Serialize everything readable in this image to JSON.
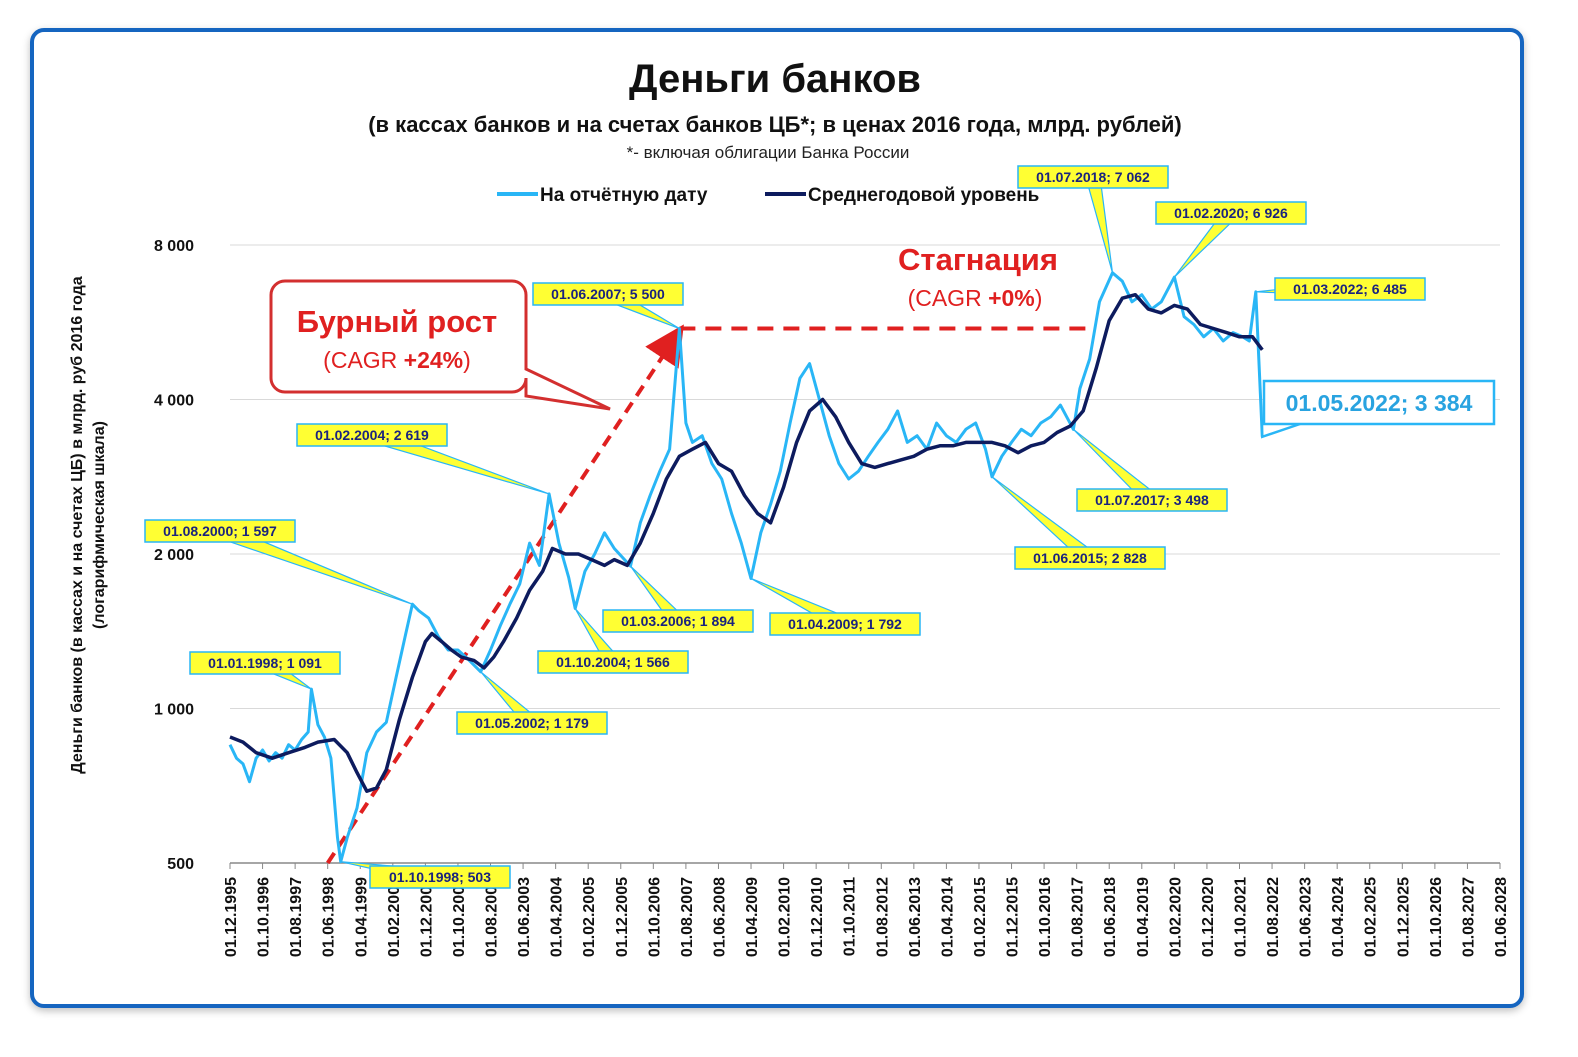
{
  "chart_data": {
    "type": "line",
    "title": "Деньги банков",
    "subtitle": "(в кассах банков и на счетах банков ЦБ*; в ценах 2016 года, млрд. рублей)",
    "footnote": "*- включая облигации Банка России",
    "ylabel_line1": "Деньги банков (в кассах и на счетах ЦБ) в млрд. руб 2016 года",
    "ylabel_line2": "(логарифмическая шкала)",
    "yscale": "log",
    "ylim": [
      500,
      8000
    ],
    "yticks": [
      {
        "value": 500,
        "label": "500"
      },
      {
        "value": 1000,
        "label": "1 000"
      },
      {
        "value": 2000,
        "label": "2 000"
      },
      {
        "value": 4000,
        "label": "4 000"
      },
      {
        "value": 8000,
        "label": "8 000"
      }
    ],
    "xlim": [
      "1995-12",
      "2028-06"
    ],
    "xticks": [
      "01.12.1995",
      "01.10.1996",
      "01.08.1997",
      "01.06.1998",
      "01.04.1999",
      "01.02.2000",
      "01.12.2000",
      "01.10.2001",
      "01.08.2002",
      "01.06.2003",
      "01.04.2004",
      "01.02.2005",
      "01.12.2005",
      "01.10.2006",
      "01.08.2007",
      "01.06.2008",
      "01.04.2009",
      "01.02.2010",
      "01.12.2010",
      "01.10.2011",
      "01.08.2012",
      "01.06.2013",
      "01.04.2014",
      "01.02.2015",
      "01.12.2015",
      "01.10.2016",
      "01.08.2017",
      "01.06.2018",
      "01.04.2019",
      "01.02.2020",
      "01.12.2020",
      "01.10.2021",
      "01.08.2022",
      "01.06.2023",
      "01.04.2024",
      "01.02.2025",
      "01.12.2025",
      "01.10.2026",
      "01.08.2027",
      "01.06.2028"
    ],
    "grid": true,
    "legend_position": "top-center",
    "series": [
      {
        "name": "На отчётную дату",
        "color": "#29b6f6",
        "points": [
          [
            "1995-12",
            850
          ],
          [
            "1996-02",
            800
          ],
          [
            "1996-04",
            780
          ],
          [
            "1996-06",
            720
          ],
          [
            "1996-08",
            800
          ],
          [
            "1996-10",
            830
          ],
          [
            "1996-12",
            790
          ],
          [
            "1997-02",
            820
          ],
          [
            "1997-04",
            800
          ],
          [
            "1997-06",
            850
          ],
          [
            "1997-08",
            830
          ],
          [
            "1997-10",
            870
          ],
          [
            "1997-12",
            900
          ],
          [
            "1998-01",
            1091
          ],
          [
            "1998-03",
            930
          ],
          [
            "1998-05",
            880
          ],
          [
            "1998-07",
            800
          ],
          [
            "1998-09",
            560
          ],
          [
            "1998-10",
            503
          ],
          [
            "1998-12",
            560
          ],
          [
            "1999-03",
            640
          ],
          [
            "1999-06",
            820
          ],
          [
            "1999-09",
            900
          ],
          [
            "1999-12",
            940
          ],
          [
            "2000-03",
            1150
          ],
          [
            "2000-06",
            1400
          ],
          [
            "2000-08",
            1597
          ],
          [
            "2000-10",
            1550
          ],
          [
            "2001-01",
            1500
          ],
          [
            "2001-04",
            1380
          ],
          [
            "2001-07",
            1300
          ],
          [
            "2001-10",
            1300
          ],
          [
            "2002-01",
            1250
          ],
          [
            "2002-05",
            1179
          ],
          [
            "2002-08",
            1300
          ],
          [
            "2002-11",
            1450
          ],
          [
            "2003-02",
            1600
          ],
          [
            "2003-05",
            1750
          ],
          [
            "2003-08",
            2100
          ],
          [
            "2003-11",
            1900
          ],
          [
            "2004-02",
            2619
          ],
          [
            "2004-05",
            2100
          ],
          [
            "2004-08",
            1800
          ],
          [
            "2004-10",
            1566
          ],
          [
            "2005-01",
            1850
          ],
          [
            "2005-04",
            2000
          ],
          [
            "2005-07",
            2200
          ],
          [
            "2005-10",
            2050
          ],
          [
            "2006-03",
            1894
          ],
          [
            "2006-06",
            2300
          ],
          [
            "2006-09",
            2600
          ],
          [
            "2006-12",
            2900
          ],
          [
            "2007-03",
            3200
          ],
          [
            "2007-06",
            5500
          ],
          [
            "2007-08",
            3600
          ],
          [
            "2007-10",
            3300
          ],
          [
            "2008-01",
            3400
          ],
          [
            "2008-04",
            3000
          ],
          [
            "2008-07",
            2800
          ],
          [
            "2008-10",
            2400
          ],
          [
            "2009-01",
            2100
          ],
          [
            "2009-04",
            1792
          ],
          [
            "2009-07",
            2200
          ],
          [
            "2009-10",
            2500
          ],
          [
            "2010-01",
            2900
          ],
          [
            "2010-04",
            3600
          ],
          [
            "2010-07",
            4400
          ],
          [
            "2010-10",
            4700
          ],
          [
            "2011-01",
            4000
          ],
          [
            "2011-04",
            3400
          ],
          [
            "2011-07",
            3000
          ],
          [
            "2011-10",
            2800
          ],
          [
            "2012-01",
            2900
          ],
          [
            "2012-04",
            3100
          ],
          [
            "2012-07",
            3300
          ],
          [
            "2012-10",
            3500
          ],
          [
            "2013-01",
            3800
          ],
          [
            "2013-04",
            3300
          ],
          [
            "2013-07",
            3400
          ],
          [
            "2013-10",
            3200
          ],
          [
            "2014-01",
            3600
          ],
          [
            "2014-04",
            3400
          ],
          [
            "2014-07",
            3300
          ],
          [
            "2014-10",
            3500
          ],
          [
            "2015-01",
            3600
          ],
          [
            "2015-04",
            3200
          ],
          [
            "2015-06",
            2828
          ],
          [
            "2015-09",
            3100
          ],
          [
            "2015-12",
            3300
          ],
          [
            "2016-03",
            3500
          ],
          [
            "2016-06",
            3400
          ],
          [
            "2016-09",
            3600
          ],
          [
            "2016-12",
            3700
          ],
          [
            "2017-03",
            3900
          ],
          [
            "2017-07",
            3498
          ],
          [
            "2017-09",
            4200
          ],
          [
            "2017-12",
            4800
          ],
          [
            "2018-03",
            6200
          ],
          [
            "2018-07",
            7062
          ],
          [
            "2018-10",
            6800
          ],
          [
            "2019-01",
            6200
          ],
          [
            "2019-04",
            6400
          ],
          [
            "2019-07",
            6000
          ],
          [
            "2019-10",
            6200
          ],
          [
            "2020-02",
            6926
          ],
          [
            "2020-05",
            5800
          ],
          [
            "2020-08",
            5600
          ],
          [
            "2020-11",
            5300
          ],
          [
            "2021-02",
            5500
          ],
          [
            "2021-05",
            5200
          ],
          [
            "2021-08",
            5400
          ],
          [
            "2021-11",
            5300
          ],
          [
            "2022-01",
            5200
          ],
          [
            "2022-03",
            6485
          ],
          [
            "2022-05",
            3384
          ]
        ]
      },
      {
        "name": "Среднегодовой уровень",
        "color": "#0d1b5e",
        "points": [
          [
            "1995-12",
            880
          ],
          [
            "1996-04",
            860
          ],
          [
            "1996-08",
            820
          ],
          [
            "1997-01",
            800
          ],
          [
            "1997-06",
            820
          ],
          [
            "1997-11",
            840
          ],
          [
            "1998-03",
            860
          ],
          [
            "1998-08",
            870
          ],
          [
            "1998-12",
            820
          ],
          [
            "1999-03",
            750
          ],
          [
            "1999-06",
            690
          ],
          [
            "1999-09",
            700
          ],
          [
            "1999-12",
            760
          ],
          [
            "2000-04",
            950
          ],
          [
            "2000-08",
            1150
          ],
          [
            "2000-12",
            1350
          ],
          [
            "2001-02",
            1400
          ],
          [
            "2001-05",
            1350
          ],
          [
            "2001-08",
            1300
          ],
          [
            "2001-11",
            1260
          ],
          [
            "2002-03",
            1240
          ],
          [
            "2002-06",
            1200
          ],
          [
            "2002-09",
            1260
          ],
          [
            "2002-12",
            1350
          ],
          [
            "2003-04",
            1500
          ],
          [
            "2003-08",
            1700
          ],
          [
            "2003-12",
            1850
          ],
          [
            "2004-03",
            2050
          ],
          [
            "2004-07",
            2000
          ],
          [
            "2004-11",
            2000
          ],
          [
            "2005-03",
            1950
          ],
          [
            "2005-07",
            1900
          ],
          [
            "2005-10",
            1950
          ],
          [
            "2006-02",
            1900
          ],
          [
            "2006-06",
            2100
          ],
          [
            "2006-10",
            2400
          ],
          [
            "2007-02",
            2800
          ],
          [
            "2007-06",
            3100
          ],
          [
            "2007-10",
            3200
          ],
          [
            "2008-02",
            3300
          ],
          [
            "2008-06",
            3000
          ],
          [
            "2008-10",
            2900
          ],
          [
            "2009-02",
            2600
          ],
          [
            "2009-06",
            2400
          ],
          [
            "2009-10",
            2300
          ],
          [
            "2010-02",
            2700
          ],
          [
            "2010-06",
            3300
          ],
          [
            "2010-10",
            3800
          ],
          [
            "2011-02",
            4000
          ],
          [
            "2011-06",
            3700
          ],
          [
            "2011-10",
            3300
          ],
          [
            "2012-02",
            3000
          ],
          [
            "2012-06",
            2950
          ],
          [
            "2012-10",
            3000
          ],
          [
            "2013-02",
            3050
          ],
          [
            "2013-06",
            3100
          ],
          [
            "2013-10",
            3200
          ],
          [
            "2014-02",
            3250
          ],
          [
            "2014-06",
            3250
          ],
          [
            "2014-10",
            3300
          ],
          [
            "2015-02",
            3300
          ],
          [
            "2015-06",
            3300
          ],
          [
            "2015-10",
            3250
          ],
          [
            "2016-02",
            3150
          ],
          [
            "2016-06",
            3250
          ],
          [
            "2016-10",
            3300
          ],
          [
            "2017-02",
            3450
          ],
          [
            "2017-06",
            3550
          ],
          [
            "2017-10",
            3800
          ],
          [
            "2018-02",
            4600
          ],
          [
            "2018-06",
            5700
          ],
          [
            "2018-10",
            6300
          ],
          [
            "2019-02",
            6400
          ],
          [
            "2019-06",
            6000
          ],
          [
            "2019-10",
            5900
          ],
          [
            "2020-02",
            6100
          ],
          [
            "2020-06",
            6000
          ],
          [
            "2020-10",
            5600
          ],
          [
            "2021-02",
            5500
          ],
          [
            "2021-06",
            5400
          ],
          [
            "2021-10",
            5300
          ],
          [
            "2022-02",
            5300
          ],
          [
            "2022-05",
            5000
          ]
        ]
      }
    ],
    "callouts": [
      {
        "date": "1998-01",
        "value": 1091,
        "text": "01.01.1998;  1 091",
        "bx": 190,
        "by": 652,
        "w": 150
      },
      {
        "date": "1998-10",
        "value": 503,
        "text": "01.10.1998;  503",
        "bx": 370,
        "by": 866,
        "w": 140
      },
      {
        "date": "2000-08",
        "value": 1597,
        "text": "01.08.2000;  1 597",
        "bx": 145,
        "by": 520,
        "w": 150
      },
      {
        "date": "2002-05",
        "value": 1179,
        "text": "01.05.2002;  1 179",
        "bx": 457,
        "by": 712,
        "w": 150
      },
      {
        "date": "2004-02",
        "value": 2619,
        "text": "01.02.2004;  2 619",
        "bx": 297,
        "by": 424,
        "w": 150
      },
      {
        "date": "2004-10",
        "value": 1566,
        "text": "01.10.2004;  1 566",
        "bx": 538,
        "by": 651,
        "w": 150
      },
      {
        "date": "2006-03",
        "value": 1894,
        "text": "01.03.2006;  1 894",
        "bx": 603,
        "by": 610,
        "w": 150
      },
      {
        "date": "2007-06",
        "value": 5500,
        "text": "01.06.2007;  5 500",
        "bx": 533,
        "by": 283,
        "w": 150
      },
      {
        "date": "2009-04",
        "value": 1792,
        "text": "01.04.2009;  1 792",
        "bx": 770,
        "by": 613,
        "w": 150
      },
      {
        "date": "2015-06",
        "value": 2828,
        "text": "01.06.2015;  2 828",
        "bx": 1015,
        "by": 547,
        "w": 150
      },
      {
        "date": "2017-07",
        "value": 3498,
        "text": "01.07.2017;  3 498",
        "bx": 1077,
        "by": 489,
        "w": 150
      },
      {
        "date": "2018-07",
        "value": 7062,
        "text": "01.07.2018;  7 062",
        "bx": 1018,
        "by": 166,
        "w": 150
      },
      {
        "date": "2020-02",
        "value": 6926,
        "text": "01.02.2020;  6 926",
        "bx": 1156,
        "by": 202,
        "w": 150
      },
      {
        "date": "2022-03",
        "value": 6485,
        "text": "01.03.2022;  6 485",
        "bx": 1275,
        "by": 278,
        "w": 150
      }
    ],
    "big_callout": {
      "date": "2022-05",
      "value": 3384,
      "text": "01.05.2022;  3 384"
    },
    "annotations": {
      "growth_title": "Бурный рост",
      "growth_cagr_prefix": "(CAGR ",
      "growth_cagr_value": "+24%",
      "growth_cagr_suffix": ")",
      "stagnation_title": "Стагнация",
      "stagnation_cagr_prefix": "(CAGR ",
      "stagnation_cagr_value": "+0%",
      "stagnation_cagr_suffix": ")"
    },
    "trend_arrow": {
      "from": [
        "1998-06",
        500
      ],
      "to": [
        "2007-04",
        5200
      ]
    },
    "stagnation_line": {
      "from": "2007-06",
      "to": "2017-12",
      "value": 5500
    }
  }
}
